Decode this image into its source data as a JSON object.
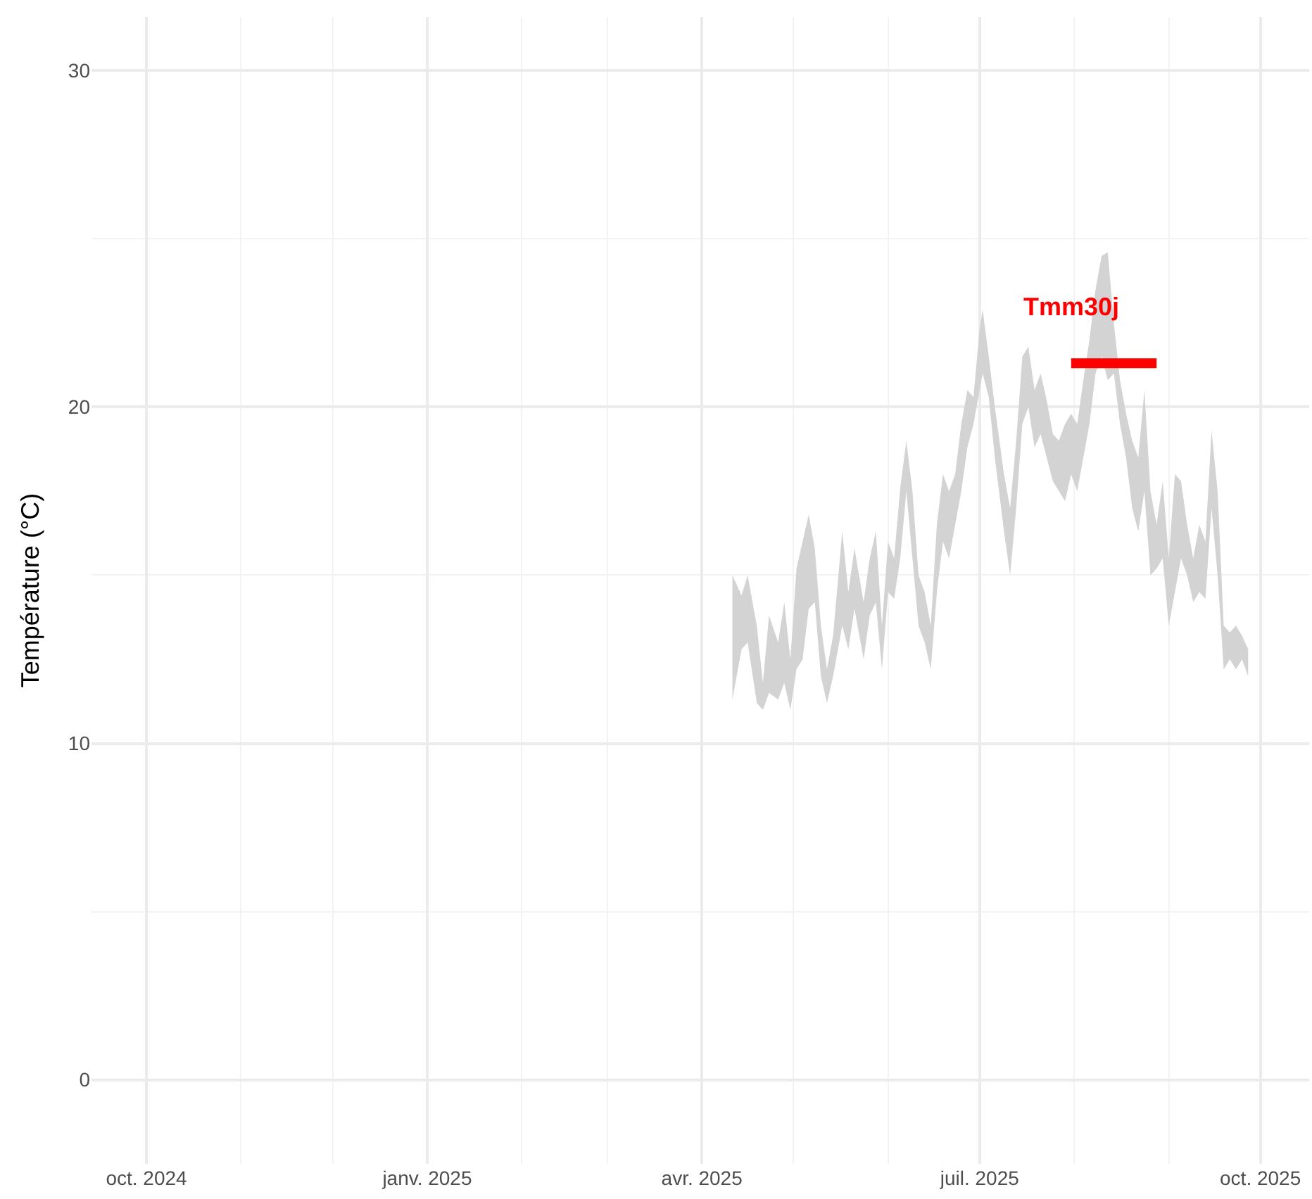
{
  "chart_data": {
    "type": "area",
    "ylabel": "Température (°C)",
    "xlim": [
      "2024-09-13",
      "2025-10-17"
    ],
    "ylim": [
      -2.5,
      31.6
    ],
    "yticks": [
      0,
      10,
      20,
      30
    ],
    "xticks": [
      {
        "value": "2024-10-01",
        "label": "oct. 2024"
      },
      {
        "value": "2025-01-01",
        "label": "janv. 2025"
      },
      {
        "value": "2025-04-01",
        "label": "avr. 2025"
      },
      {
        "value": "2025-07-01",
        "label": "juil. 2025"
      },
      {
        "value": "2025-10-01",
        "label": "oct. 2025"
      }
    ],
    "grid": true,
    "legend": false,
    "series": [
      {
        "color": "#d3d3d3",
        "values": [
          null,
          null,
          null,
          null,
          null,
          null,
          null,
          null,
          null,
          null,
          null,
          null,
          null,
          null,
          null,
          null,
          null,
          null,
          null,
          null,
          null,
          null,
          null,
          null,
          null,
          null,
          null,
          null,
          null,
          null,
          null,
          null,
          null,
          null,
          null,
          null,
          null,
          null,
          null,
          null,
          null,
          null,
          null,
          null,
          null,
          null,
          null,
          null,
          null,
          null,
          null,
          null,
          null,
          null,
          null,
          null,
          null,
          null,
          null,
          null,
          null,
          null,
          null,
          null,
          null,
          null,
          null,
          null,
          null,
          null,
          null,
          null,
          null,
          null,
          null,
          null,
          null,
          null,
          null,
          null,
          null,
          null,
          null
        ],
        "x": [
          "2025-04-11",
          "2025-04-14",
          "2025-04-16",
          "2025-04-19",
          "2025-04-21",
          "2025-04-23",
          "2025-04-26",
          "2025-04-28",
          "2025-04-30",
          "2025-05-02",
          "2025-05-04",
          "2025-05-06",
          "2025-05-08",
          "2025-05-10",
          "2025-05-12",
          "2025-05-14",
          "2025-05-17",
          "2025-05-19",
          "2025-05-21",
          "2025-05-24",
          "2025-05-26",
          "2025-05-28",
          "2025-05-30",
          "2025-06-01",
          "2025-06-03",
          "2025-06-05",
          "2025-06-07",
          "2025-06-09",
          "2025-06-11",
          "2025-06-13",
          "2025-06-15",
          "2025-06-17",
          "2025-06-19",
          "2025-06-21",
          "2025-06-23",
          "2025-06-25",
          "2025-06-27",
          "2025-06-29",
          "2025-07-01",
          "2025-07-02",
          "2025-07-04",
          "2025-07-06",
          "2025-07-09",
          "2025-07-11",
          "2025-07-13",
          "2025-07-15",
          "2025-07-17",
          "2025-07-19",
          "2025-07-21",
          "2025-07-23",
          "2025-07-25",
          "2025-07-27",
          "2025-07-29",
          "2025-07-31",
          "2025-08-02",
          "2025-08-04",
          "2025-08-06",
          "2025-08-08",
          "2025-08-10",
          "2025-08-12",
          "2025-08-14",
          "2025-08-16",
          "2025-08-18",
          "2025-08-20",
          "2025-08-22",
          "2025-08-24",
          "2025-08-26",
          "2025-08-28",
          "2025-08-30",
          "2025-09-01",
          "2025-09-03",
          "2025-09-05",
          "2025-09-07",
          "2025-09-09",
          "2025-09-11",
          "2025-09-13",
          "2025-09-15",
          "2025-09-17",
          "2025-09-19",
          "2025-09-21",
          "2025-09-23",
          "2025-09-25",
          "2025-09-27"
        ],
        "lower": [
          11.3,
          12.8,
          13.0,
          11.2,
          11.0,
          11.5,
          11.3,
          11.8,
          11.0,
          12.2,
          12.5,
          14.0,
          14.2,
          12.0,
          11.2,
          12.0,
          13.5,
          12.8,
          14.0,
          12.5,
          13.8,
          14.2,
          12.2,
          14.5,
          14.3,
          15.5,
          17.5,
          15.5,
          13.5,
          13.0,
          12.2,
          14.5,
          16.0,
          15.5,
          16.5,
          17.5,
          18.8,
          19.5,
          20.5,
          21.0,
          20.3,
          18.5,
          16.3,
          15.0,
          17.0,
          19.5,
          20.0,
          18.8,
          19.2,
          18.5,
          17.8,
          17.5,
          17.2,
          18.0,
          17.5,
          18.5,
          19.5,
          21.0,
          21.5,
          20.8,
          21.0,
          19.5,
          18.5,
          17.0,
          16.3,
          17.5,
          15.0,
          15.2,
          15.5,
          13.5,
          14.5,
          15.5,
          15.0,
          14.2,
          14.5,
          14.3,
          17.0,
          15.0,
          12.2,
          12.5,
          12.2,
          12.5,
          12.0
        ],
        "upper": [
          15.0,
          14.4,
          15.0,
          13.5,
          11.8,
          13.8,
          13.0,
          14.2,
          12.5,
          15.2,
          16.0,
          16.8,
          15.8,
          13.5,
          12.2,
          13.2,
          16.3,
          14.5,
          15.8,
          14.2,
          15.5,
          16.3,
          13.5,
          16.0,
          15.5,
          17.6,
          19.0,
          17.5,
          15.0,
          14.5,
          13.5,
          16.5,
          18.0,
          17.5,
          18.0,
          19.5,
          20.5,
          20.3,
          22.3,
          22.9,
          21.5,
          20.0,
          18.0,
          17.0,
          19.0,
          21.5,
          21.8,
          20.5,
          21.0,
          20.2,
          19.2,
          19.0,
          19.5,
          19.8,
          19.5,
          20.8,
          22.0,
          23.5,
          24.5,
          24.6,
          22.5,
          20.8,
          19.8,
          19.0,
          18.5,
          20.5,
          17.5,
          16.5,
          17.8,
          15.5,
          18.0,
          17.8,
          16.5,
          15.5,
          16.5,
          16.0,
          19.3,
          17.5,
          13.5,
          13.3,
          13.5,
          13.2,
          12.8
        ]
      },
      {
        "type": "line",
        "name": "Tmm30j",
        "color": "#ff0000",
        "x": [
          "2025-07-31",
          "2025-08-28"
        ],
        "values": [
          21.3,
          21.3
        ]
      }
    ]
  }
}
